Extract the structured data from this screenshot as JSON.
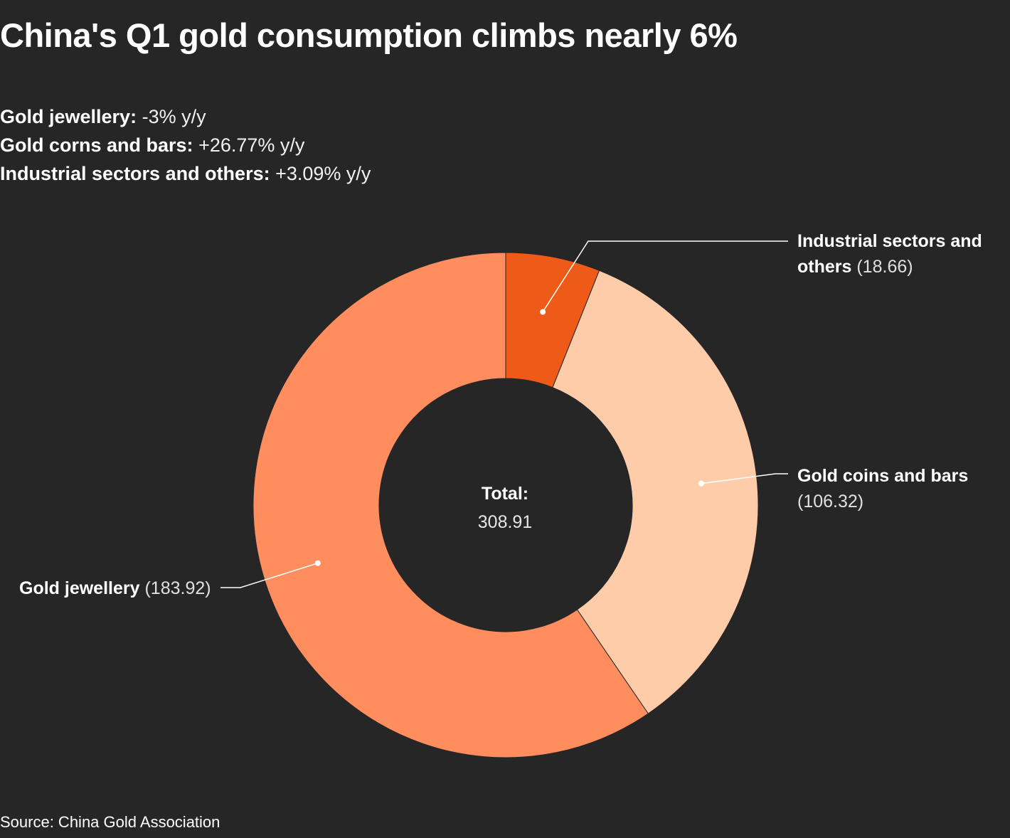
{
  "title": "China's Q1 gold consumption climbs nearly 6%",
  "subtitle": [
    {
      "label": "Gold jewellery:",
      "value": "-3% y/y"
    },
    {
      "label": "Gold corns and bars:",
      "value": "+26.77% y/y"
    },
    {
      "label": "Industrial sectors and others:",
      "value": "+3.09% y/y"
    }
  ],
  "chart_data": {
    "type": "pie",
    "variant": "donut",
    "slices": [
      {
        "name": "Industrial sectors and others",
        "value": 18.66,
        "value_label": "(18.66)",
        "color": "#EE5A17"
      },
      {
        "name": "Gold coins and bars",
        "value": 106.32,
        "value_label": "(106.32)",
        "color": "#FFCCAA"
      },
      {
        "name": "Gold jewellery",
        "value": 183.92,
        "value_label": "(183.92)",
        "color": "#FF8D5E"
      }
    ],
    "center": {
      "label": "Total:",
      "value": "308.91"
    }
  },
  "source": "Source: China Gold Association"
}
